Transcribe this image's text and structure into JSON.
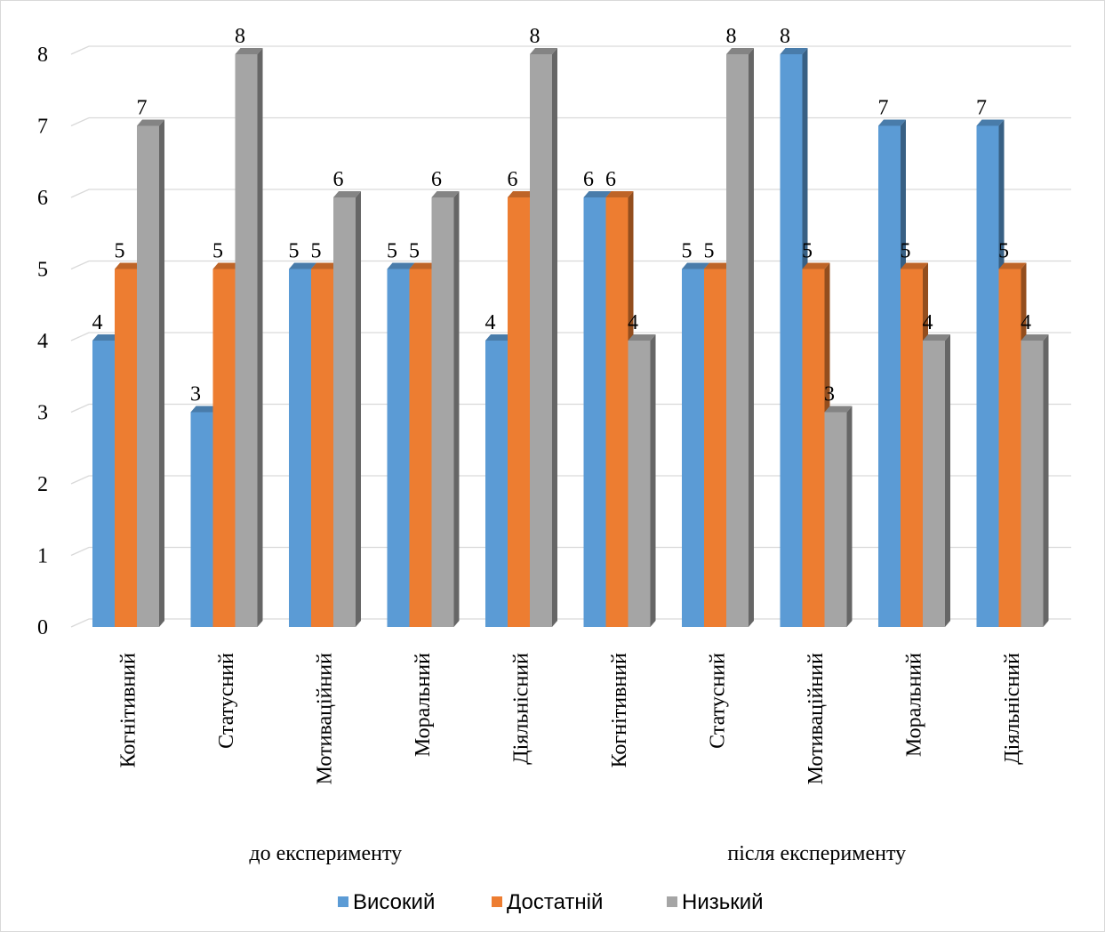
{
  "chart_data": {
    "type": "bar",
    "title": "",
    "xlabel": "",
    "ylabel": "",
    "ylim": [
      0,
      8
    ],
    "yticks": [
      0,
      1,
      2,
      3,
      4,
      5,
      6,
      7,
      8
    ],
    "grid": true,
    "style": "3d-clustered-column",
    "legend_position": "bottom",
    "groups": [
      {
        "label": "до експерименту",
        "categories": [
          "Когнітивний",
          "Статусний",
          "Мотиваційний",
          "Моральний",
          "Діяльнісний"
        ]
      },
      {
        "label": "після експерименту",
        "categories": [
          "Когнітивний",
          "Статусний",
          "Мотиваційний",
          "Моральний",
          "Діяльнісний"
        ]
      }
    ],
    "categories": [
      "Когнітивний",
      "Статусний",
      "Мотиваційний",
      "Моральний",
      "Діяльнісний",
      "Когнітивний",
      "Статусний",
      "Мотиваційний",
      "Моральний",
      "Діяльнісний"
    ],
    "series": [
      {
        "name": "Високий",
        "color": "#5b9bd5",
        "values": [
          4,
          3,
          5,
          5,
          4,
          6,
          5,
          8,
          7,
          7
        ]
      },
      {
        "name": "Достатній",
        "color": "#ed7d31",
        "values": [
          5,
          5,
          5,
          5,
          6,
          6,
          5,
          5,
          5,
          5
        ]
      },
      {
        "name": "Низький",
        "color": "#a5a5a5",
        "values": [
          7,
          8,
          6,
          6,
          8,
          4,
          8,
          3,
          4,
          4
        ]
      }
    ]
  }
}
